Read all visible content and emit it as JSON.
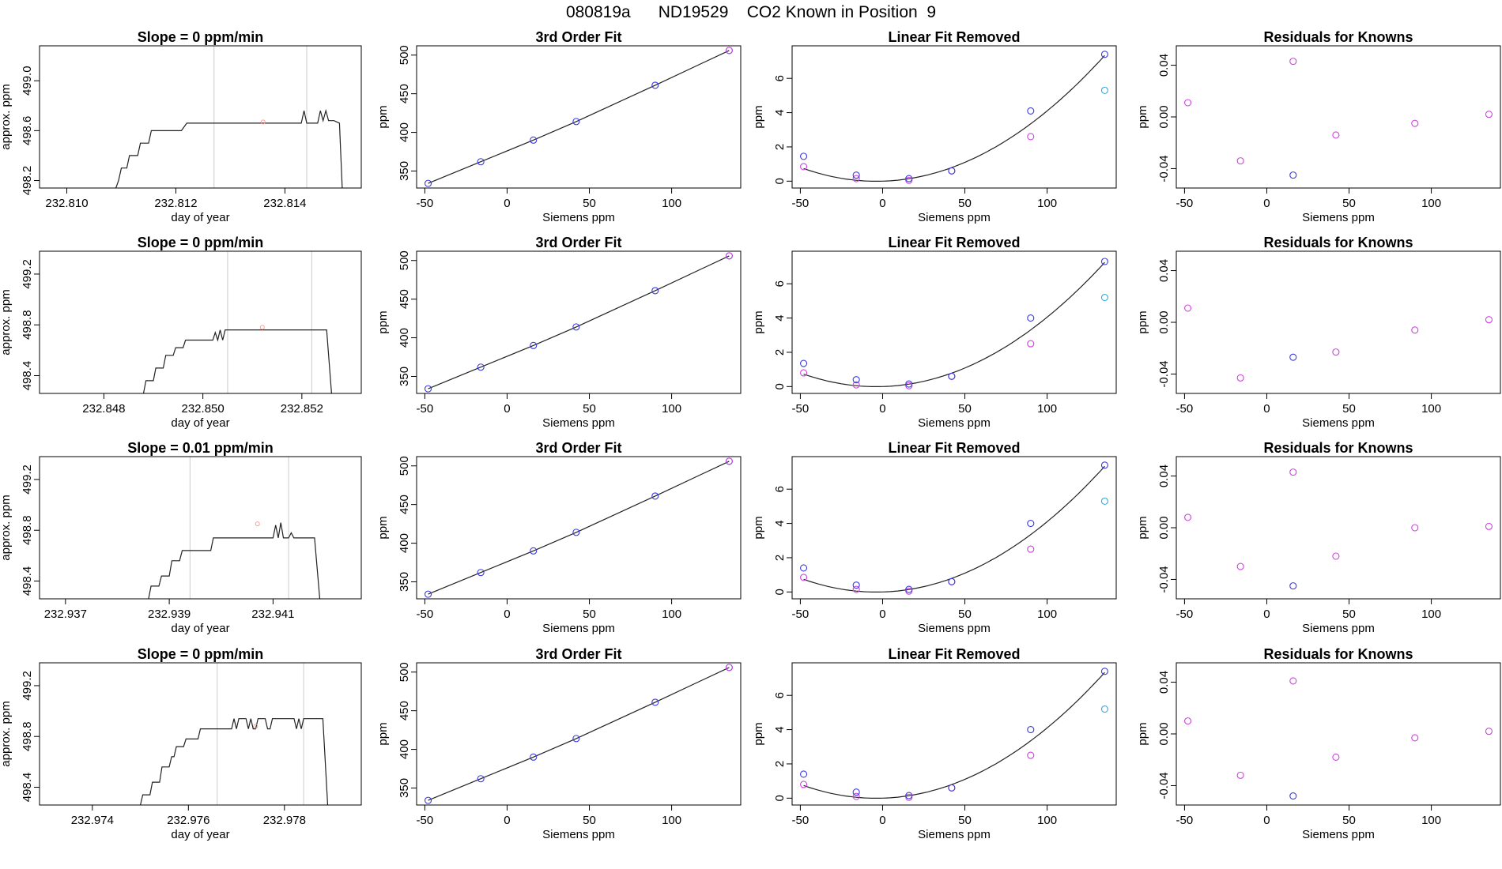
{
  "page": {
    "title": "080819a      ND19529    CO2 Known in Position  9"
  },
  "colors": {
    "line": "#222222",
    "gridline": "#cccccc",
    "blue": "#3a3ae0",
    "magenta": "#cc44dd",
    "cyan": "#33aadd",
    "pink": "#ff9999"
  },
  "chart_data": [
    {
      "type": "line",
      "panel": "trace",
      "row": 1,
      "title": "Slope =  0  ppm/min",
      "xlabel": "day of year",
      "ylabel": "approx. ppm",
      "xlim": [
        232.8095,
        232.8154
      ],
      "ylim": [
        498.14,
        499.28
      ],
      "xticks": [
        "232.810",
        "232.812",
        "232.814"
      ],
      "yticks": [
        "498.2",
        "498.6",
        "499.0"
      ],
      "vlines": [
        232.8127,
        232.8144
      ],
      "mean_marker": [
        232.8136,
        498.67
      ],
      "trace": [
        [
          232.8109,
          498.14
        ],
        [
          232.81095,
          498.2
        ],
        [
          232.811,
          498.3
        ],
        [
          232.8111,
          498.3
        ],
        [
          232.81115,
          498.4
        ],
        [
          232.8113,
          498.4
        ],
        [
          232.81135,
          498.5
        ],
        [
          232.8115,
          498.5
        ],
        [
          232.81155,
          498.6
        ],
        [
          232.8121,
          498.6
        ],
        [
          232.8122,
          498.66
        ],
        [
          232.8143,
          498.66
        ],
        [
          232.81435,
          498.76
        ],
        [
          232.8144,
          498.66
        ],
        [
          232.8146,
          498.66
        ],
        [
          232.81465,
          498.76
        ],
        [
          232.8147,
          498.68
        ],
        [
          232.81475,
          498.76
        ],
        [
          232.8148,
          498.68
        ],
        [
          232.8149,
          498.68
        ],
        [
          232.815,
          498.66
        ],
        [
          232.81505,
          498.14
        ]
      ]
    },
    {
      "type": "scatter",
      "panel": "fit",
      "row": 1,
      "title": "3rd Order Fit",
      "xlabel": "Siemens ppm",
      "ylabel": "ppm",
      "xlim": [
        -55,
        142
      ],
      "ylim": [
        328,
        512
      ],
      "xticks": [
        "-50",
        "0",
        "50",
        "100"
      ],
      "yticks": [
        "350",
        "400",
        "450",
        "500"
      ],
      "points": [
        [
          -48,
          334
        ],
        [
          -16,
          362
        ],
        [
          16,
          390
        ],
        [
          42,
          414
        ],
        [
          90,
          461
        ],
        [
          135,
          506
        ]
      ]
    },
    {
      "type": "scatter",
      "panel": "linear_removed",
      "row": 1,
      "title": "Linear Fit Removed",
      "xlabel": "Siemens ppm",
      "ylabel": "ppm",
      "xlim": [
        -55,
        142
      ],
      "ylim": [
        -0.4,
        7.9
      ],
      "xticks": [
        "-50",
        "0",
        "50",
        "100"
      ],
      "yticks": [
        "0",
        "2",
        "4",
        "6"
      ],
      "blue_points": [
        [
          -48,
          1.45
        ],
        [
          -16,
          0.35
        ],
        [
          16,
          0.15
        ],
        [
          42,
          0.6
        ],
        [
          90,
          4.1
        ],
        [
          135,
          7.4
        ]
      ],
      "magenta_points": [
        [
          -48,
          0.85
        ],
        [
          -16,
          0.15
        ],
        [
          16,
          0.05
        ],
        [
          42,
          0.6
        ],
        [
          90,
          2.6
        ]
      ],
      "cyan_point": [
        135,
        5.3
      ],
      "curve_coeffs": [
        0.000381,
        0.0029,
        0.0
      ]
    },
    {
      "type": "scatter",
      "panel": "residuals",
      "row": 1,
      "title": "Residuals for Knowns",
      "xlabel": "Siemens ppm",
      "ylabel": "ppm",
      "xlim": [
        -55,
        142
      ],
      "ylim": [
        -0.055,
        0.055
      ],
      "xticks": [
        "-50",
        "0",
        "50",
        "100"
      ],
      "yticks": [
        "-0.04",
        "0.00",
        "0.04"
      ],
      "magenta_points": [
        [
          -48,
          0.011
        ],
        [
          -16,
          -0.034
        ],
        [
          16,
          0.043
        ],
        [
          42,
          -0.014
        ],
        [
          90,
          -0.005
        ],
        [
          135,
          0.002
        ]
      ],
      "blue_points": [
        [
          16,
          -0.045
        ]
      ]
    },
    {
      "type": "line",
      "panel": "trace",
      "row": 2,
      "title": "Slope =  0  ppm/min",
      "xlabel": "day of year",
      "ylabel": "approx. ppm",
      "xlim": [
        232.8467,
        232.8532
      ],
      "ylim": [
        498.26,
        499.38
      ],
      "xticks": [
        "232.848",
        "232.850",
        "232.852"
      ],
      "yticks": [
        "498.4",
        "498.8",
        "499.2"
      ],
      "vlines": [
        232.8505,
        232.8522
      ],
      "mean_marker": [
        232.8512,
        498.78
      ],
      "trace": [
        [
          232.8488,
          498.26
        ],
        [
          232.84885,
          498.36
        ],
        [
          232.849,
          498.36
        ],
        [
          232.84905,
          498.46
        ],
        [
          232.8492,
          498.46
        ],
        [
          232.84925,
          498.56
        ],
        [
          232.8494,
          498.56
        ],
        [
          232.84945,
          498.62
        ],
        [
          232.8496,
          498.62
        ],
        [
          232.84965,
          498.68
        ],
        [
          232.8502,
          498.68
        ],
        [
          232.85025,
          498.74
        ],
        [
          232.8503,
          498.68
        ],
        [
          232.85035,
          498.76
        ],
        [
          232.8504,
          498.68
        ],
        [
          232.85045,
          498.76
        ],
        [
          232.8525,
          498.76
        ],
        [
          232.8526,
          498.26
        ]
      ]
    },
    {
      "type": "scatter",
      "panel": "fit",
      "row": 2,
      "title": "3rd Order Fit",
      "xlabel": "Siemens ppm",
      "ylabel": "ppm",
      "xlim": [
        -55,
        142
      ],
      "ylim": [
        328,
        512
      ],
      "xticks": [
        "-50",
        "0",
        "50",
        "100"
      ],
      "yticks": [
        "350",
        "400",
        "450",
        "500"
      ],
      "points": [
        [
          -48,
          334
        ],
        [
          -16,
          362
        ],
        [
          16,
          390
        ],
        [
          42,
          414
        ],
        [
          90,
          461
        ],
        [
          135,
          506
        ]
      ]
    },
    {
      "type": "scatter",
      "panel": "linear_removed",
      "row": 2,
      "title": "Linear Fit Removed",
      "xlabel": "Siemens ppm",
      "ylabel": "ppm",
      "xlim": [
        -55,
        142
      ],
      "ylim": [
        -0.4,
        7.9
      ],
      "xticks": [
        "-50",
        "0",
        "50",
        "100"
      ],
      "yticks": [
        "0",
        "2",
        "4",
        "6"
      ],
      "blue_points": [
        [
          -48,
          1.35
        ],
        [
          -16,
          0.4
        ],
        [
          16,
          0.15
        ],
        [
          42,
          0.6
        ],
        [
          90,
          4.0
        ],
        [
          135,
          7.3
        ]
      ],
      "magenta_points": [
        [
          -48,
          0.8
        ],
        [
          -16,
          0.1
        ],
        [
          16,
          0.05
        ],
        [
          42,
          0.6
        ],
        [
          90,
          2.5
        ]
      ],
      "cyan_point": [
        135,
        5.2
      ],
      "curve_coeffs": [
        0.000376,
        0.0029,
        0.0
      ]
    },
    {
      "type": "scatter",
      "panel": "residuals",
      "row": 2,
      "title": "Residuals for Knowns",
      "xlabel": "Siemens ppm",
      "ylabel": "ppm",
      "xlim": [
        -55,
        142
      ],
      "ylim": [
        -0.055,
        0.055
      ],
      "xticks": [
        "-50",
        "0",
        "50",
        "100"
      ],
      "yticks": [
        "-0.04",
        "0.00",
        "0.04"
      ],
      "magenta_points": [
        [
          -48,
          0.011
        ],
        [
          -16,
          -0.043
        ],
        [
          42,
          -0.023
        ],
        [
          90,
          -0.006
        ],
        [
          135,
          0.002
        ]
      ],
      "blue_points": [
        [
          16,
          -0.027
        ]
      ]
    },
    {
      "type": "line",
      "panel": "trace",
      "row": 3,
      "title": "Slope =  0.01  ppm/min",
      "xlabel": "day of year",
      "ylabel": "approx. ppm",
      "xlim": [
        232.9365,
        232.9427
      ],
      "ylim": [
        498.26,
        499.38
      ],
      "xticks": [
        "232.937",
        "232.939",
        "232.941"
      ],
      "yticks": [
        "498.4",
        "498.8",
        "499.2"
      ],
      "vlines": [
        232.9394,
        232.9413
      ],
      "mean_marker": [
        232.9407,
        498.85
      ],
      "trace": [
        [
          232.9386,
          498.26
        ],
        [
          232.93865,
          498.36
        ],
        [
          232.9388,
          498.36
        ],
        [
          232.93885,
          498.44
        ],
        [
          232.939,
          498.44
        ],
        [
          232.93905,
          498.56
        ],
        [
          232.9392,
          498.56
        ],
        [
          232.93925,
          498.64
        ],
        [
          232.9398,
          498.64
        ],
        [
          232.93985,
          498.74
        ],
        [
          232.941,
          498.74
        ],
        [
          232.94105,
          498.84
        ],
        [
          232.9411,
          498.74
        ],
        [
          232.94115,
          498.86
        ],
        [
          232.9412,
          498.74
        ],
        [
          232.9413,
          498.74
        ],
        [
          232.94135,
          498.78
        ],
        [
          232.9414,
          498.74
        ],
        [
          232.9418,
          498.74
        ],
        [
          232.9419,
          498.26
        ]
      ]
    },
    {
      "type": "scatter",
      "panel": "fit",
      "row": 3,
      "title": "3rd Order Fit",
      "xlabel": "Siemens ppm",
      "ylabel": "ppm",
      "xlim": [
        -55,
        142
      ],
      "ylim": [
        328,
        512
      ],
      "xticks": [
        "-50",
        "0",
        "50",
        "100"
      ],
      "yticks": [
        "350",
        "400",
        "450",
        "500"
      ],
      "points": [
        [
          -48,
          334
        ],
        [
          -16,
          362
        ],
        [
          16,
          390
        ],
        [
          42,
          414
        ],
        [
          90,
          461
        ],
        [
          135,
          506
        ]
      ]
    },
    {
      "type": "scatter",
      "panel": "linear_removed",
      "row": 3,
      "title": "Linear Fit Removed",
      "xlabel": "Siemens ppm",
      "ylabel": "ppm",
      "xlim": [
        -55,
        142
      ],
      "ylim": [
        -0.4,
        7.9
      ],
      "xticks": [
        "-50",
        "0",
        "50",
        "100"
      ],
      "yticks": [
        "0",
        "2",
        "4",
        "6"
      ],
      "blue_points": [
        [
          -48,
          1.4
        ],
        [
          -16,
          0.4
        ],
        [
          16,
          0.15
        ],
        [
          42,
          0.6
        ],
        [
          90,
          4.0
        ],
        [
          135,
          7.4
        ]
      ],
      "magenta_points": [
        [
          -48,
          0.85
        ],
        [
          -16,
          0.15
        ],
        [
          16,
          0.05
        ],
        [
          42,
          0.6
        ],
        [
          90,
          2.5
        ]
      ],
      "cyan_point": [
        135,
        5.3
      ],
      "curve_coeffs": [
        0.000381,
        0.0029,
        0.0
      ]
    },
    {
      "type": "scatter",
      "panel": "residuals",
      "row": 3,
      "title": "Residuals for Knowns",
      "xlabel": "Siemens ppm",
      "ylabel": "ppm",
      "xlim": [
        -55,
        142
      ],
      "ylim": [
        -0.055,
        0.055
      ],
      "xticks": [
        "-50",
        "0",
        "50",
        "100"
      ],
      "yticks": [
        "-0.04",
        "0.00",
        "0.04"
      ],
      "magenta_points": [
        [
          -48,
          0.008
        ],
        [
          -16,
          -0.03
        ],
        [
          16,
          0.043
        ],
        [
          42,
          -0.022
        ],
        [
          90,
          0.0
        ],
        [
          135,
          0.001
        ]
      ],
      "blue_points": [
        [
          16,
          -0.045
        ]
      ]
    },
    {
      "type": "line",
      "panel": "trace",
      "row": 4,
      "title": "Slope =  0  ppm/min",
      "xlabel": "day of year",
      "ylabel": "approx. ppm",
      "xlim": [
        232.9729,
        232.9796
      ],
      "ylim": [
        498.26,
        499.38
      ],
      "xticks": [
        "232.974",
        "232.976",
        "232.978"
      ],
      "yticks": [
        "498.4",
        "498.8",
        "499.2"
      ],
      "vlines": [
        232.9766,
        232.9784
      ],
      "mean_marker": [
        232.9774,
        498.88
      ],
      "trace": [
        [
          232.975,
          498.26
        ],
        [
          232.97505,
          498.34
        ],
        [
          232.9752,
          498.34
        ],
        [
          232.97525,
          498.44
        ],
        [
          232.9754,
          498.44
        ],
        [
          232.97545,
          498.56
        ],
        [
          232.9756,
          498.56
        ],
        [
          232.97565,
          498.64
        ],
        [
          232.9757,
          498.64
        ],
        [
          232.97575,
          498.72
        ],
        [
          232.9759,
          498.72
        ],
        [
          232.97595,
          498.78
        ],
        [
          232.9762,
          498.78
        ],
        [
          232.97625,
          498.86
        ],
        [
          232.9769,
          498.86
        ],
        [
          232.97695,
          498.94
        ],
        [
          232.977,
          498.86
        ],
        [
          232.97705,
          498.94
        ],
        [
          232.9772,
          498.94
        ],
        [
          232.97725,
          498.86
        ],
        [
          232.9773,
          498.94
        ],
        [
          232.97735,
          498.86
        ],
        [
          232.9774,
          498.86
        ],
        [
          232.97745,
          498.94
        ],
        [
          232.9776,
          498.94
        ],
        [
          232.97765,
          498.86
        ],
        [
          232.9777,
          498.86
        ],
        [
          232.97775,
          498.94
        ],
        [
          232.9782,
          498.94
        ],
        [
          232.97825,
          498.86
        ],
        [
          232.9783,
          498.94
        ],
        [
          232.97835,
          498.86
        ],
        [
          232.9784,
          498.94
        ],
        [
          232.9788,
          498.94
        ],
        [
          232.9789,
          498.26
        ]
      ]
    },
    {
      "type": "scatter",
      "panel": "fit",
      "row": 4,
      "title": "3rd Order Fit",
      "xlabel": "Siemens ppm",
      "ylabel": "ppm",
      "xlim": [
        -55,
        142
      ],
      "ylim": [
        328,
        512
      ],
      "xticks": [
        "-50",
        "0",
        "50",
        "100"
      ],
      "yticks": [
        "350",
        "400",
        "450",
        "500"
      ],
      "points": [
        [
          -48,
          334
        ],
        [
          -16,
          362
        ],
        [
          16,
          390
        ],
        [
          42,
          414
        ],
        [
          90,
          461
        ],
        [
          135,
          506
        ]
      ]
    },
    {
      "type": "scatter",
      "panel": "linear_removed",
      "row": 4,
      "title": "Linear Fit Removed",
      "xlabel": "Siemens ppm",
      "ylabel": "ppm",
      "xlim": [
        -55,
        142
      ],
      "ylim": [
        -0.4,
        7.9
      ],
      "xticks": [
        "-50",
        "0",
        "50",
        "100"
      ],
      "yticks": [
        "0",
        "2",
        "4",
        "6"
      ],
      "blue_points": [
        [
          -48,
          1.4
        ],
        [
          -16,
          0.35
        ],
        [
          16,
          0.15
        ],
        [
          42,
          0.6
        ],
        [
          90,
          4.0
        ],
        [
          135,
          7.4
        ]
      ],
      "magenta_points": [
        [
          -48,
          0.8
        ],
        [
          -16,
          0.1
        ],
        [
          16,
          0.05
        ],
        [
          42,
          0.6
        ],
        [
          90,
          2.5
        ]
      ],
      "cyan_point": [
        135,
        5.2
      ],
      "curve_coeffs": [
        0.000381,
        0.0029,
        0.0
      ]
    },
    {
      "type": "scatter",
      "panel": "residuals",
      "row": 4,
      "title": "Residuals for Knowns",
      "xlabel": "Siemens ppm",
      "ylabel": "ppm",
      "xlim": [
        -55,
        142
      ],
      "ylim": [
        -0.055,
        0.055
      ],
      "xticks": [
        "-50",
        "0",
        "50",
        "100"
      ],
      "yticks": [
        "-0.04",
        "0.00",
        "0.04"
      ],
      "magenta_points": [
        [
          -48,
          0.01
        ],
        [
          -16,
          -0.032
        ],
        [
          16,
          0.041
        ],
        [
          42,
          -0.018
        ],
        [
          90,
          -0.003
        ],
        [
          135,
          0.002
        ]
      ],
      "blue_points": [
        [
          16,
          -0.048
        ]
      ]
    }
  ]
}
